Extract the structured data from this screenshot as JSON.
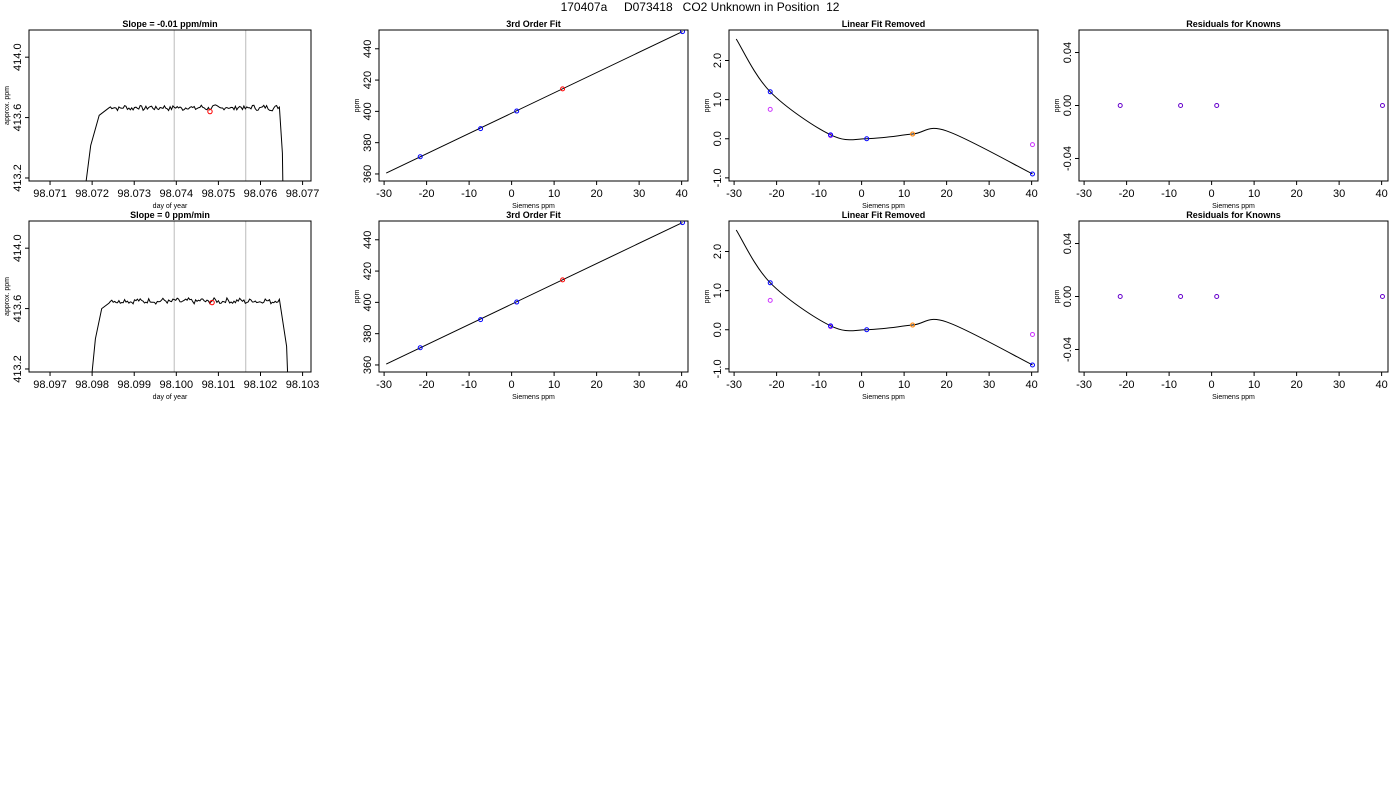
{
  "page_title": "170407a     D073418   CO2 Unknown in Position  12",
  "colors": {
    "line": "#000000",
    "known": "#0000ff",
    "unknown": "#ff0000",
    "fit_unknown": "#ff8000",
    "raw_point": "#cc33ff",
    "residual": "#6600cc",
    "vline": "#bbbbbb"
  },
  "chart_data": [
    {
      "type": "line",
      "title": "Slope =  -0.01  ppm/min",
      "xlabel": "day of year",
      "ylabel": "approx. ppm",
      "xlim": [
        98.0705,
        98.0772
      ],
      "ylim": [
        413.18,
        414.18
      ],
      "xticks": [
        98.071,
        98.072,
        98.073,
        98.074,
        98.075,
        98.076,
        98.077
      ],
      "xtick_labels": [
        "98.071",
        "98.072",
        "98.073",
        "98.074",
        "98.075",
        "98.076",
        "98.077"
      ],
      "yticks": [
        413.2,
        413.6,
        414.0
      ],
      "ytick_labels": [
        "413.2",
        "413.6",
        "414.0"
      ],
      "vlines": [
        98.07395,
        98.07565
      ],
      "trace": {
        "rise_start": 98.07182,
        "plateau_start": 98.0724,
        "plateau_end": 98.07645,
        "fall_end": 98.07652,
        "level": 413.665,
        "low": 413.1
      },
      "marker": {
        "x": 98.0748,
        "y": 413.64
      }
    },
    {
      "type": "scatter",
      "title": "3rd Order Fit",
      "xlabel": "Siemens ppm",
      "ylabel": "ppm",
      "xlim": [
        -31.2,
        41.5
      ],
      "ylim": [
        355.5,
        452
      ],
      "xticks": [
        -30,
        -20,
        -10,
        0,
        10,
        20,
        30,
        40
      ],
      "xtick_labels": [
        "-30",
        "-20",
        "-10",
        "0",
        "10",
        "20",
        "30",
        "40"
      ],
      "yticks": [
        360,
        380,
        400,
        420,
        440
      ],
      "ytick_labels": [
        "360",
        "380",
        "400",
        "420",
        "440"
      ],
      "line": [
        [
          -29.5,
          360.6
        ],
        [
          40.2,
          451.0
        ]
      ],
      "knowns": [
        [
          -21.5,
          371.0
        ],
        [
          -7.3,
          389.0
        ],
        [
          1.2,
          400.2
        ],
        [
          40.2,
          451.0
        ]
      ],
      "unknown": [
        12.0,
        414.4
      ]
    },
    {
      "type": "scatter",
      "title": "Linear Fit Removed",
      "xlabel": "Siemens ppm",
      "ylabel": "ppm",
      "xlim": [
        -31.2,
        41.5
      ],
      "ylim": [
        -1.08,
        2.78
      ],
      "xticks": [
        -30,
        -20,
        -10,
        0,
        10,
        20,
        30,
        40
      ],
      "xtick_labels": [
        "-30",
        "-20",
        "-10",
        "0",
        "10",
        "20",
        "30",
        "40"
      ],
      "yticks": [
        -1.0,
        0.0,
        1.0,
        2.0
      ],
      "ytick_labels": [
        "-1.0",
        "0.0",
        "1.0",
        "2.0"
      ],
      "curve_points": [
        [
          -29.5,
          2.55
        ],
        [
          -21.5,
          1.2
        ],
        [
          -7.3,
          0.1
        ],
        [
          1.2,
          0.0
        ],
        [
          12.0,
          0.12
        ],
        [
          20.0,
          0.2
        ],
        [
          40.2,
          -0.9
        ]
      ],
      "knowns": [
        [
          -21.5,
          1.2
        ],
        [
          -7.3,
          0.1
        ],
        [
          1.2,
          0.0
        ],
        [
          40.2,
          -0.9
        ]
      ],
      "raw_points": [
        [
          -21.5,
          0.75
        ],
        [
          -7.3,
          0.08
        ],
        [
          40.2,
          -0.15
        ]
      ],
      "unknown": [
        12.0,
        0.12
      ]
    },
    {
      "type": "scatter",
      "title": "Residuals for Knowns",
      "xlabel": "Siemens ppm",
      "ylabel": "ppm",
      "xlim": [
        -31.2,
        41.5
      ],
      "ylim": [
        -0.057,
        0.057
      ],
      "xticks": [
        -30,
        -20,
        -10,
        0,
        10,
        20,
        30,
        40
      ],
      "xtick_labels": [
        "-30",
        "-20",
        "-10",
        "0",
        "10",
        "20",
        "30",
        "40"
      ],
      "yticks": [
        -0.04,
        0.0,
        0.04
      ],
      "ytick_labels": [
        "-0.04",
        "0.00",
        "0.04"
      ],
      "residuals": [
        [
          -21.5,
          0.0
        ],
        [
          -7.3,
          0.0
        ],
        [
          1.2,
          0.0
        ],
        [
          40.2,
          0.0
        ]
      ]
    },
    {
      "type": "line",
      "title": "Slope =  0  ppm/min",
      "xlabel": "day of year",
      "ylabel": "approx. ppm",
      "xlim": [
        98.0965,
        98.1032
      ],
      "ylim": [
        413.18,
        414.18
      ],
      "xticks": [
        98.097,
        98.098,
        98.099,
        98.1,
        98.101,
        98.102,
        98.103
      ],
      "xtick_labels": [
        "98.097",
        "98.098",
        "98.099",
        "98.100",
        "98.101",
        "98.102",
        "98.103"
      ],
      "yticks": [
        413.2,
        413.6,
        414.0
      ],
      "ytick_labels": [
        "413.2",
        "413.6",
        "414.0"
      ],
      "vlines": [
        98.09995,
        98.10165
      ],
      "trace": {
        "rise_start": 98.09797,
        "plateau_start": 98.0984,
        "plateau_end": 98.10245,
        "fall_end": 98.10262,
        "level": 413.65,
        "low": 413.1
      },
      "marker": {
        "x": 98.10085,
        "y": 413.64
      }
    },
    {
      "type": "scatter",
      "title": "3rd Order Fit",
      "xlabel": "Siemens ppm",
      "ylabel": "ppm",
      "xlim": [
        -31.2,
        41.5
      ],
      "ylim": [
        355.5,
        452
      ],
      "xticks": [
        -30,
        -20,
        -10,
        0,
        10,
        20,
        30,
        40
      ],
      "xtick_labels": [
        "-30",
        "-20",
        "-10",
        "0",
        "10",
        "20",
        "30",
        "40"
      ],
      "yticks": [
        360,
        380,
        400,
        420,
        440
      ],
      "ytick_labels": [
        "360",
        "380",
        "400",
        "420",
        "440"
      ],
      "line": [
        [
          -29.5,
          360.6
        ],
        [
          40.2,
          451.0
        ]
      ],
      "knowns": [
        [
          -21.5,
          371.0
        ],
        [
          -7.3,
          389.0
        ],
        [
          1.2,
          400.2
        ],
        [
          40.2,
          451.0
        ]
      ],
      "unknown": [
        12.0,
        414.4
      ]
    },
    {
      "type": "scatter",
      "title": "Linear Fit Removed",
      "xlabel": "Siemens ppm",
      "ylabel": "ppm",
      "xlim": [
        -31.2,
        41.5
      ],
      "ylim": [
        -1.08,
        2.78
      ],
      "xticks": [
        -30,
        -20,
        -10,
        0,
        10,
        20,
        30,
        40
      ],
      "xtick_labels": [
        "-30",
        "-20",
        "-10",
        "0",
        "10",
        "20",
        "30",
        "40"
      ],
      "yticks": [
        -1.0,
        0.0,
        1.0,
        2.0
      ],
      "ytick_labels": [
        "-1.0",
        "0.0",
        "1.0",
        "2.0"
      ],
      "curve_points": [
        [
          -29.5,
          2.55
        ],
        [
          -21.5,
          1.2
        ],
        [
          -7.3,
          0.1
        ],
        [
          1.2,
          0.0
        ],
        [
          12.0,
          0.12
        ],
        [
          20.0,
          0.2
        ],
        [
          40.2,
          -0.9
        ]
      ],
      "knowns": [
        [
          -21.5,
          1.2
        ],
        [
          -7.3,
          0.1
        ],
        [
          1.2,
          0.0
        ],
        [
          40.2,
          -0.9
        ]
      ],
      "raw_points": [
        [
          -21.5,
          0.75
        ],
        [
          -7.3,
          0.08
        ],
        [
          40.2,
          -0.12
        ]
      ],
      "unknown": [
        12.0,
        0.12
      ]
    },
    {
      "type": "scatter",
      "title": "Residuals for Knowns",
      "xlabel": "Siemens ppm",
      "ylabel": "ppm",
      "xlim": [
        -31.2,
        41.5
      ],
      "ylim": [
        -0.057,
        0.057
      ],
      "xticks": [
        -30,
        -20,
        -10,
        0,
        10,
        20,
        30,
        40
      ],
      "xtick_labels": [
        "-30",
        "-20",
        "-10",
        "0",
        "10",
        "20",
        "30",
        "40"
      ],
      "yticks": [
        -0.04,
        0.0,
        0.04
      ],
      "ytick_labels": [
        "-0.04",
        "0.00",
        "0.04"
      ],
      "residuals": [
        [
          -21.5,
          0.0
        ],
        [
          -7.3,
          0.0
        ],
        [
          1.2,
          0.0
        ],
        [
          40.2,
          0.0
        ]
      ]
    }
  ]
}
